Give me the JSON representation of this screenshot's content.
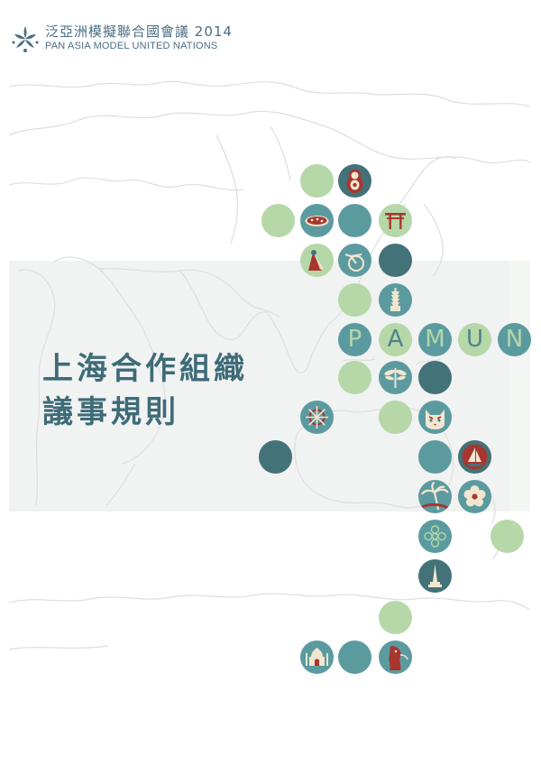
{
  "header": {
    "org_name_cn": "泛亞洲模擬聯合國會議 2014",
    "org_name_en": "PAN ASIA MODEL UNITED NATIONS",
    "logo_icon": "pamun-logo-icon"
  },
  "title": {
    "line1": "上海合作組織",
    "line2": "議事規則"
  },
  "pamun_letters": [
    "P",
    "A",
    "M",
    "U",
    "N"
  ],
  "colors": {
    "title": "#3e6b78",
    "circle_green": "#b6d7a8",
    "circle_teal": "#5b9ba0",
    "circle_dark": "#437279",
    "icon_red": "#a8362f",
    "icon_cream": "#f2e6cf",
    "band": "#f1f2f2"
  },
  "circle_icons": [
    "matryoshka-icon",
    "pizza-icon",
    "torii-gate-icon",
    "scarf-figure-icon",
    "bicycle-icon",
    "taipei-tower-icon",
    "dragonfly-icon",
    "cat-face-icon",
    "ship-wheel-icon",
    "sailboat-icon",
    "palm-tree-icon",
    "flower-icon",
    "ornament-pattern-icon",
    "pagoda-spire-icon",
    "taj-mahal-icon",
    "merlion-icon"
  ]
}
